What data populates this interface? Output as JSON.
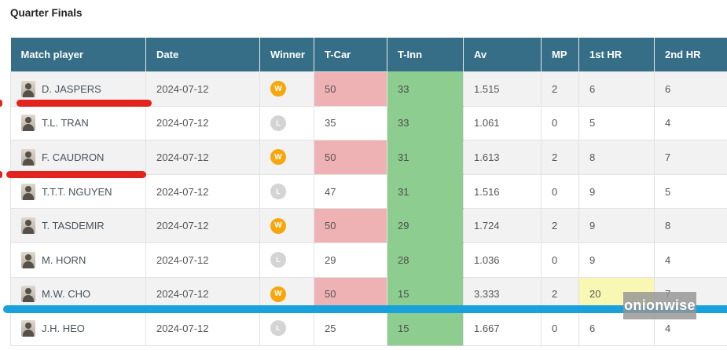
{
  "page": {
    "title": "Quarter Finals"
  },
  "watermark": "onionwise",
  "colors": {
    "header_bg": "#366e88",
    "row_alt_bg": "#f2f2f2",
    "pink_highlight": "#efb2b4",
    "green_highlight": "#8ecd90",
    "yellow_highlight": "#f8f7b4",
    "win_badge": "#f7a60b",
    "lose_badge": "#d4d4d4",
    "stripe_blue": "#18a1da",
    "annotation_red": "#e2231e"
  },
  "table": {
    "columns": [
      {
        "key": "player",
        "label": "Match player"
      },
      {
        "key": "date",
        "label": "Date"
      },
      {
        "key": "winner",
        "label": "Winner"
      },
      {
        "key": "tcar",
        "label": "T-Car"
      },
      {
        "key": "tinn",
        "label": "T-Inn"
      },
      {
        "key": "av",
        "label": "Av"
      },
      {
        "key": "mp",
        "label": "MP"
      },
      {
        "key": "hr1",
        "label": "1st HR"
      },
      {
        "key": "hr2",
        "label": "2nd HR"
      }
    ],
    "rows": [
      {
        "player": "D. JASPERS",
        "date": "2024-07-12",
        "winner": "W",
        "tcar": "50",
        "tcar_highlight": true,
        "tinn": "33",
        "av": "1.515",
        "mp": "2",
        "hr1": "6",
        "hr1_highlight": false,
        "hr2": "6"
      },
      {
        "player": "T.L. TRAN",
        "date": "2024-07-12",
        "winner": "L",
        "tcar": "35",
        "tcar_highlight": false,
        "tinn": "33",
        "av": "1.061",
        "mp": "0",
        "hr1": "5",
        "hr1_highlight": false,
        "hr2": "4"
      },
      {
        "player": "F. CAUDRON",
        "date": "2024-07-12",
        "winner": "W",
        "tcar": "50",
        "tcar_highlight": true,
        "tinn": "31",
        "av": "1.613",
        "mp": "2",
        "hr1": "8",
        "hr1_highlight": false,
        "hr2": "7"
      },
      {
        "player": "T.T.T. NGUYEN",
        "date": "2024-07-12",
        "winner": "L",
        "tcar": "47",
        "tcar_highlight": false,
        "tinn": "31",
        "av": "1.516",
        "mp": "0",
        "hr1": "9",
        "hr1_highlight": false,
        "hr2": "5"
      },
      {
        "player": "T. TASDEMIR",
        "date": "2024-07-12",
        "winner": "W",
        "tcar": "50",
        "tcar_highlight": true,
        "tinn": "29",
        "av": "1.724",
        "mp": "2",
        "hr1": "9",
        "hr1_highlight": false,
        "hr2": "8"
      },
      {
        "player": "M. HORN",
        "date": "2024-07-12",
        "winner": "L",
        "tcar": "29",
        "tcar_highlight": false,
        "tinn": "28",
        "av": "1.036",
        "mp": "0",
        "hr1": "9",
        "hr1_highlight": false,
        "hr2": "4"
      },
      {
        "player": "M.W. CHO",
        "date": "2024-07-12",
        "winner": "W",
        "tcar": "50",
        "tcar_highlight": true,
        "tinn": "15",
        "av": "3.333",
        "mp": "2",
        "hr1": "20",
        "hr1_highlight": true,
        "hr2": "7"
      },
      {
        "player": "J.H. HEO",
        "date": "2024-07-12",
        "winner": "L",
        "tcar": "25",
        "tcar_highlight": false,
        "tinn": "15",
        "av": "1.667",
        "mp": "0",
        "hr1": "6",
        "hr1_highlight": false,
        "hr2": "4"
      }
    ]
  }
}
